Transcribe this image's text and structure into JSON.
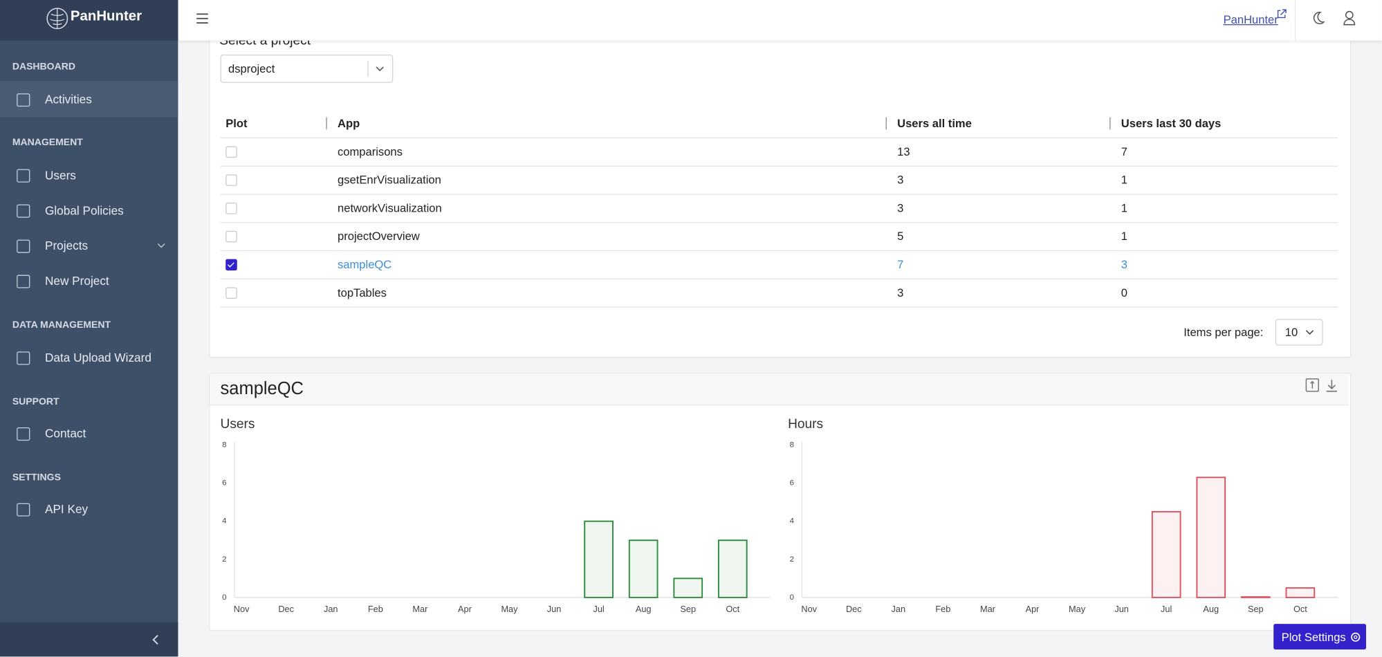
{
  "sidebar": {
    "brand": "PanHunter",
    "sections": [
      {
        "title": "DASHBOARD",
        "items": [
          "Activities"
        ]
      },
      {
        "title": "MANAGEMENT",
        "items": [
          "Users",
          "Global Policies",
          "Projects",
          "New Project"
        ]
      },
      {
        "title": "DATA MANAGEMENT",
        "items": [
          "Data Upload Wizard"
        ]
      },
      {
        "title": "SUPPORT",
        "items": [
          "Contact"
        ]
      },
      {
        "title": "SETTINGS",
        "items": [
          "API Key"
        ]
      }
    ]
  },
  "header": {
    "link": "PanHunter"
  },
  "project": {
    "label": "Select a project",
    "selected": "dsproject"
  },
  "table": {
    "headers": [
      "Plot",
      "App",
      "Users all time",
      "Users last 30 days"
    ],
    "rows": [
      [
        "comparisons",
        13,
        7
      ],
      [
        "gsetEnrVisualization",
        3,
        1
      ],
      [
        "networkVisualization",
        3,
        1
      ],
      [
        "projectOverview",
        5,
        1
      ],
      [
        "sampleQC",
        7,
        3
      ],
      [
        "topTables",
        3,
        0
      ]
    ],
    "checked": [
      false,
      false,
      false,
      false,
      true,
      false
    ]
  },
  "pagination": {
    "label": "Items per page:",
    "value": 10
  },
  "plot_panel": {
    "title": "sampleQC",
    "button": "Plot Settings"
  },
  "chart_data": [
    {
      "type": "bar",
      "title": "Users",
      "categories": [
        "Nov",
        "Dec",
        "Jan",
        "Feb",
        "Mar",
        "Apr",
        "May",
        "Jun",
        "Jul",
        "Aug",
        "Sep",
        "Oct"
      ],
      "values": [
        0,
        0,
        0,
        0,
        0,
        0,
        0,
        0,
        4,
        3,
        1,
        3
      ],
      "color": "#2e8b3e",
      "ylim": [
        0,
        8
      ],
      "yticks": [
        0,
        2,
        4,
        6,
        8
      ]
    },
    {
      "type": "bar",
      "title": "Hours",
      "categories": [
        "Nov",
        "Dec",
        "Jan",
        "Feb",
        "Mar",
        "Apr",
        "May",
        "Jun",
        "Jul",
        "Aug",
        "Sep",
        "Oct"
      ],
      "values": [
        0,
        0,
        0,
        0,
        0,
        0,
        0,
        0,
        4.5,
        6.3,
        0.03,
        0.5
      ],
      "color": "#e0505f",
      "ylim": [
        0,
        8
      ],
      "yticks": [
        0,
        2,
        4,
        6,
        8
      ]
    }
  ]
}
